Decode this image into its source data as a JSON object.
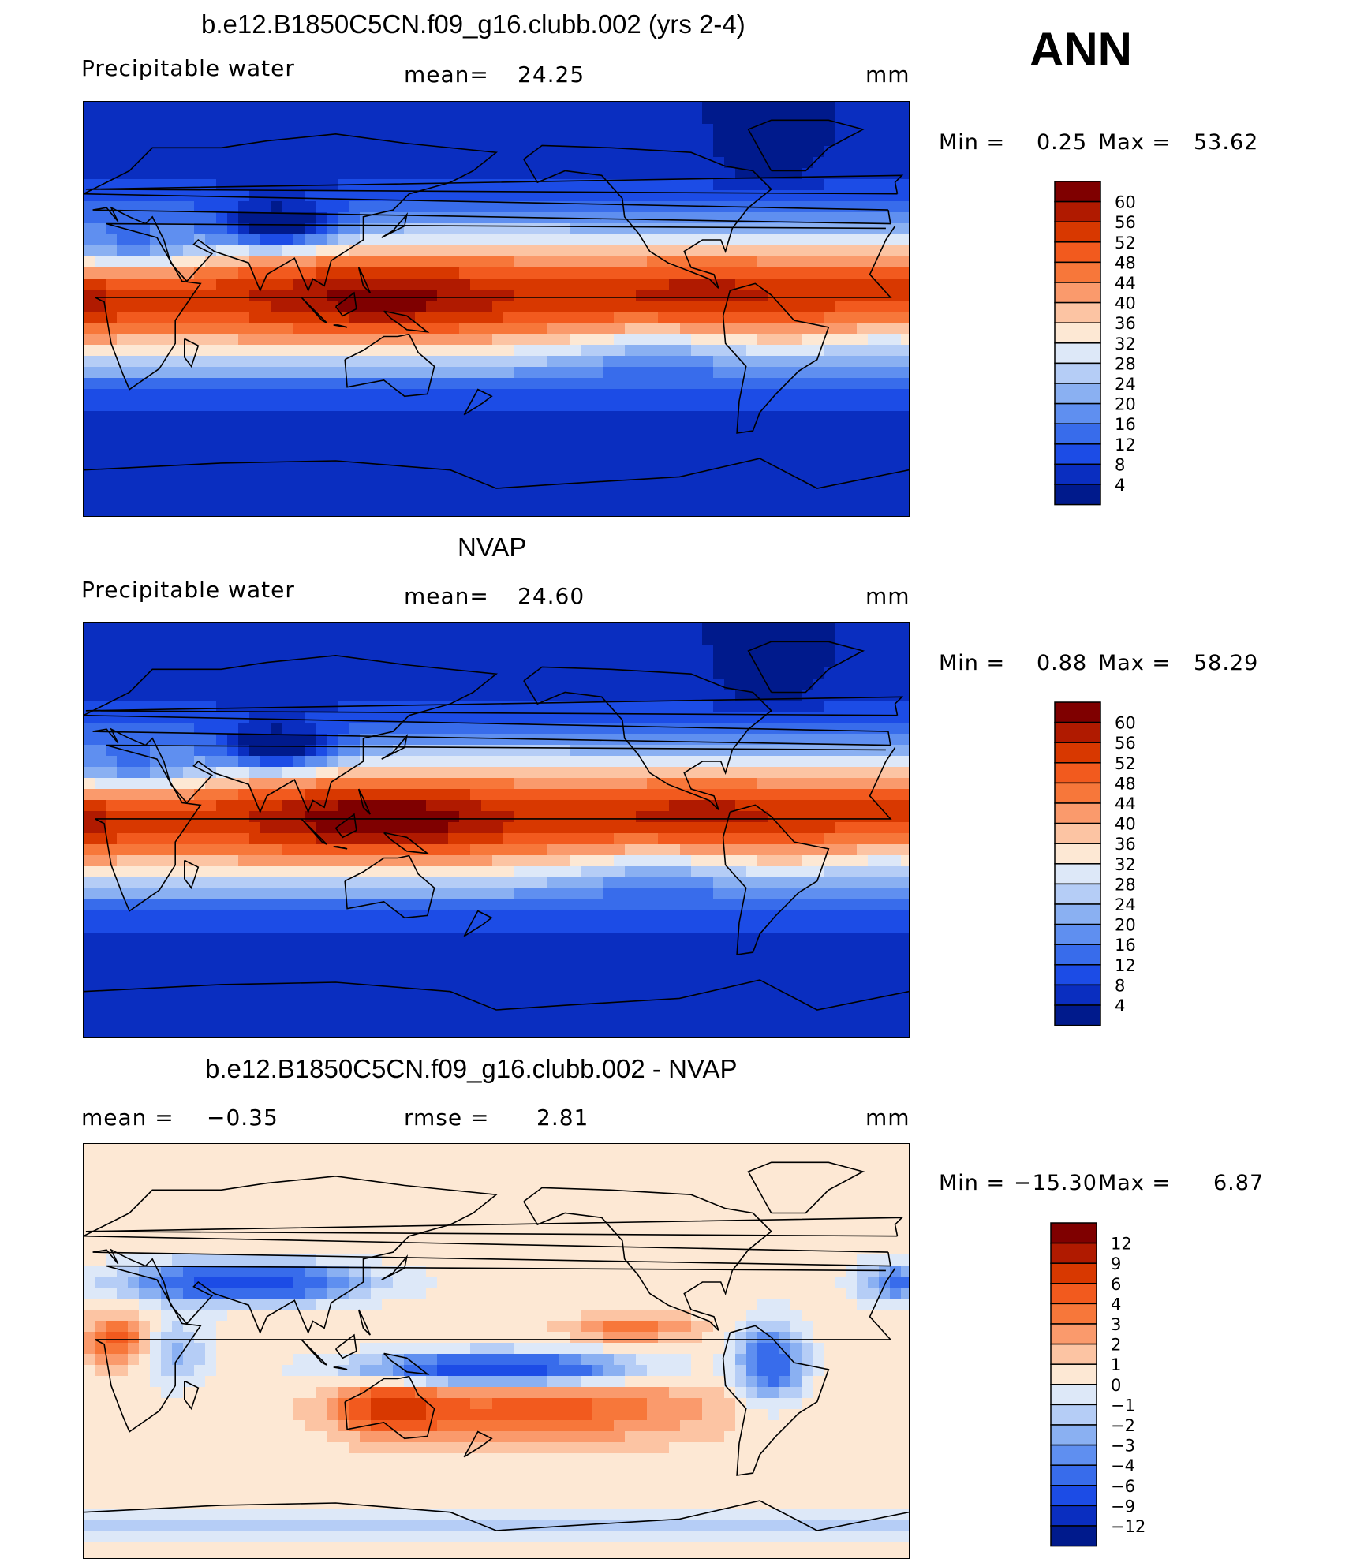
{
  "season": "ANN",
  "chart_data": [
    {
      "type": "heatmap",
      "title": "b.e12.B1850C5CN.f09_g16.clubb.002 (yrs 2-4)",
      "variable": "Precipitable water",
      "stat_label": "mean=",
      "stat_value": "24.25",
      "units": "mm",
      "min_label": "Min  =",
      "min_value": "0.25",
      "max_label": "Max  =",
      "max_value": "53.62",
      "min": 0.25,
      "max": 53.62,
      "colorbar": {
        "labels": [
          "60",
          "56",
          "52",
          "48",
          "44",
          "40",
          "36",
          "32",
          "28",
          "24",
          "20",
          "16",
          "12",
          "8",
          "4"
        ],
        "colors": [
          "#7f0000",
          "#b01a00",
          "#d83800",
          "#f25a1e",
          "#f7773a",
          "#fa9a6c",
          "#fcc4a3",
          "#fde8d4",
          "#dde8f8",
          "#b5cdf6",
          "#8ab0f2",
          "#5f8ff0",
          "#386ceb",
          "#1c4ce6",
          "#0a2ec0",
          "#001a8c"
        ]
      }
    },
    {
      "type": "heatmap",
      "title": "NVAP",
      "variable": "Precipitable water",
      "stat_label": "mean=",
      "stat_value": "24.60",
      "units": "mm",
      "min_label": "Min  =",
      "min_value": "0.88",
      "max_label": "Max  =",
      "max_value": "58.29",
      "min": 0.88,
      "max": 58.29,
      "colorbar": {
        "labels": [
          "60",
          "56",
          "52",
          "48",
          "44",
          "40",
          "36",
          "32",
          "28",
          "24",
          "20",
          "16",
          "12",
          "8",
          "4"
        ],
        "colors": [
          "#7f0000",
          "#b01a00",
          "#d83800",
          "#f25a1e",
          "#f7773a",
          "#fa9a6c",
          "#fcc4a3",
          "#fde8d4",
          "#dde8f8",
          "#b5cdf6",
          "#8ab0f2",
          "#5f8ff0",
          "#386ceb",
          "#1c4ce6",
          "#0a2ec0",
          "#001a8c"
        ]
      }
    },
    {
      "type": "heatmap",
      "title": "b.e12.B1850C5CN.f09_g16.clubb.002 - NVAP",
      "stat_label": "mean  =",
      "stat_value": "−0.35",
      "stat2_label": "rmse  =",
      "stat2_value": "2.81",
      "units": "mm",
      "min_label": "Min  =",
      "min_value": "−15.30",
      "max_label": "Max  =",
      "max_value": "6.87",
      "min": -15.3,
      "max": 6.87,
      "colorbar": {
        "labels": [
          "12",
          "9",
          "6",
          "4",
          "3",
          "2",
          "1",
          "0",
          "−1",
          "−2",
          "−3",
          "−4",
          "−6",
          "−9",
          "−12"
        ],
        "colors": [
          "#7f0000",
          "#b01a00",
          "#d83800",
          "#f25a1e",
          "#f7773a",
          "#fa9a6c",
          "#fcc4a3",
          "#fde8d4",
          "#dde8f8",
          "#b5cdf6",
          "#8ab0f2",
          "#5f8ff0",
          "#386ceb",
          "#1c4ce6",
          "#0a2ec0",
          "#001a8c"
        ]
      }
    }
  ]
}
